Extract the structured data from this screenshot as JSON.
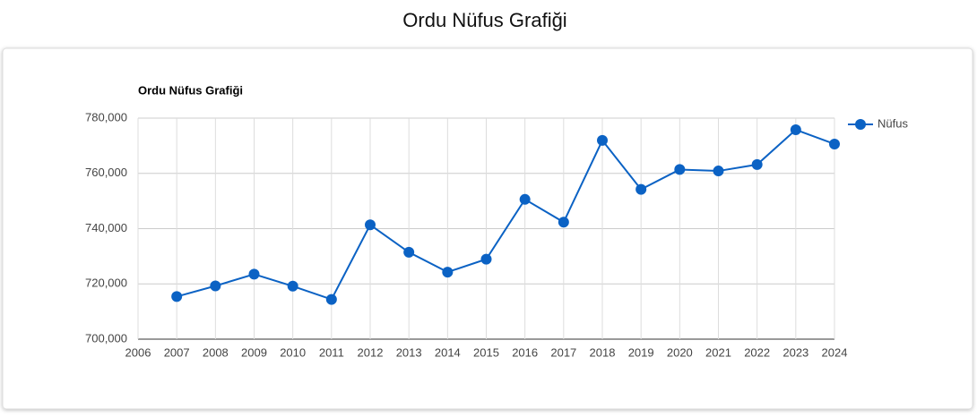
{
  "header": {
    "title": "Ordu Nüfus Grafiği"
  },
  "chart_data": {
    "type": "line",
    "title": "Ordu Nüfus Grafiği",
    "x": [
      2007,
      2008,
      2009,
      2010,
      2011,
      2012,
      2013,
      2014,
      2015,
      2016,
      2017,
      2018,
      2019,
      2020,
      2021,
      2022,
      2023,
      2024
    ],
    "series": [
      {
        "name": "Nüfus",
        "color": "#0b62c4",
        "values": [
          715409,
          719278,
          723507,
          719183,
          714390,
          741371,
          731452,
          724268,
          728949,
          750588,
          742341,
          771932,
          754198,
          761400,
          760872,
          763190,
          775800,
          770610
        ]
      }
    ],
    "xlim": [
      2006,
      2024
    ],
    "xticks": [
      2006,
      2007,
      2008,
      2009,
      2010,
      2011,
      2012,
      2013,
      2014,
      2015,
      2016,
      2017,
      2018,
      2019,
      2020,
      2021,
      2022,
      2023,
      2024
    ],
    "ylim": [
      700000,
      780000
    ],
    "yticks": [
      {
        "value": 700000,
        "label": "700,000"
      },
      {
        "value": 720000,
        "label": "720,000"
      },
      {
        "value": 740000,
        "label": "740,000"
      },
      {
        "value": 760000,
        "label": "760,000"
      },
      {
        "value": 780000,
        "label": "780,000"
      }
    ],
    "grid": true,
    "legend": "right"
  }
}
